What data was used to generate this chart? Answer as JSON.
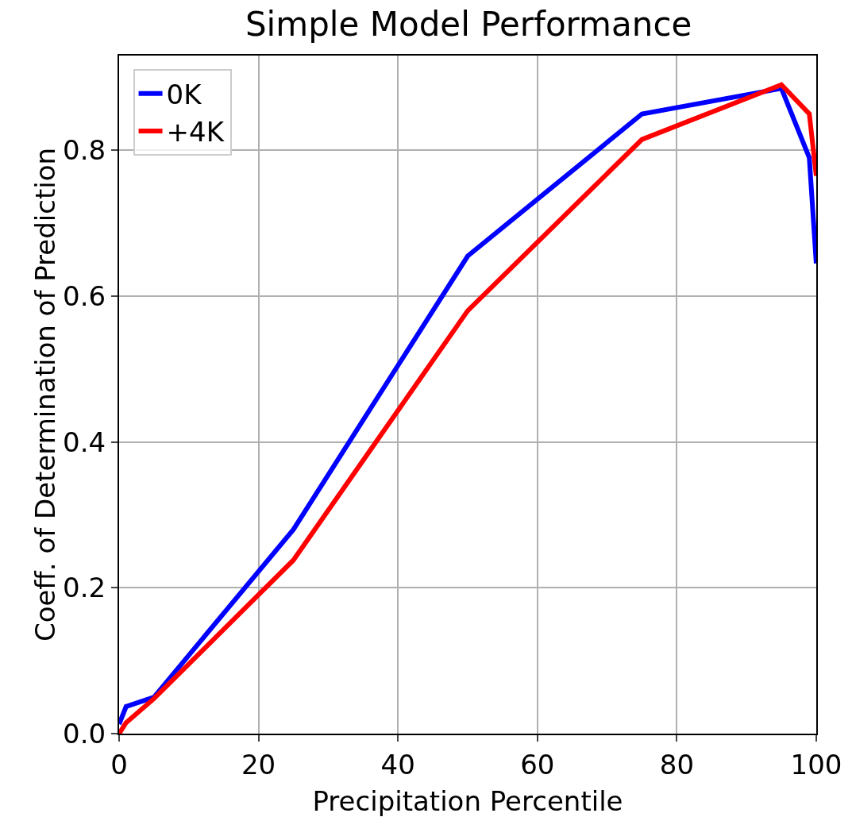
{
  "chart_data": {
    "type": "line",
    "title": "Simple Model Performance",
    "xlabel": "Precipitation Percentile",
    "ylabel": "Coeff. of Determination of Prediction",
    "x": [
      0,
      1,
      5,
      25,
      50,
      75,
      95,
      99,
      100
    ],
    "series": [
      {
        "name": "0K",
        "color": "#0000ff",
        "values": [
          0.013,
          0.037,
          0.05,
          0.28,
          0.655,
          0.85,
          0.885,
          0.79,
          0.645
        ]
      },
      {
        "name": "+4K",
        "color": "#ff0000",
        "values": [
          0.0,
          0.015,
          0.048,
          0.238,
          0.58,
          0.815,
          0.89,
          0.85,
          0.765
        ]
      }
    ],
    "xlim": [
      0,
      100
    ],
    "xticks": [
      0,
      20,
      40,
      60,
      80,
      100
    ],
    "ylim": [
      0,
      0.93
    ],
    "yticks": [
      {
        "value": 0,
        "label": "0.0"
      },
      {
        "value": 0.2,
        "label": "0.2"
      },
      {
        "value": 0.4,
        "label": "0.4"
      },
      {
        "value": 0.6,
        "label": "0.6"
      },
      {
        "value": 0.8,
        "label": "0.8"
      }
    ],
    "grid": true,
    "legend": "top left",
    "line_style": "solid"
  }
}
